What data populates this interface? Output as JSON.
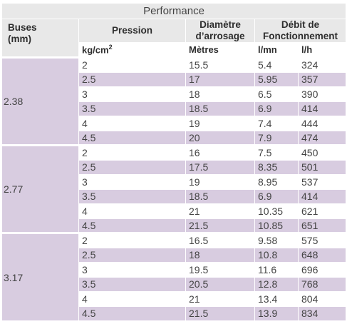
{
  "table": {
    "title": "Performance",
    "headers": {
      "buses": [
        "Buses",
        "(mm)"
      ],
      "pression": "Pression",
      "diametre": [
        "Diamètre",
        "d’arrosage"
      ],
      "debit": [
        "Débit de",
        "Fonctionnement"
      ]
    },
    "units": {
      "pression": "kg/cm",
      "pression_exp": "2",
      "diametre": "Mètres",
      "lmn": "l/mn",
      "lh": "l/h"
    },
    "groups": [
      {
        "buse": "2.38",
        "rows": [
          {
            "pression": "2",
            "diametre": "15.5",
            "lmn": "5.4",
            "lh": "324"
          },
          {
            "pression": "2.5",
            "diametre": "17",
            "lmn": "5.95",
            "lh": "357"
          },
          {
            "pression": "3",
            "diametre": "18",
            "lmn": "6.5",
            "lh": "390"
          },
          {
            "pression": "3.5",
            "diametre": "18.5",
            "lmn": "6.9",
            "lh": "414"
          },
          {
            "pression": "4",
            "diametre": "19",
            "lmn": "7.4",
            "lh": "444"
          },
          {
            "pression": "4.5",
            "diametre": "20",
            "lmn": "7.9",
            "lh": "474"
          }
        ]
      },
      {
        "buse": "2.77",
        "rows": [
          {
            "pression": "2",
            "diametre": "16",
            "lmn": "7.5",
            "lh": "450"
          },
          {
            "pression": "2.5",
            "diametre": "17.5",
            "lmn": "8.35",
            "lh": "501"
          },
          {
            "pression": "3",
            "diametre": "19",
            "lmn": "8.95",
            "lh": "537"
          },
          {
            "pression": "3.5",
            "diametre": "18.5",
            "lmn": "6.9",
            "lh": "414"
          },
          {
            "pression": "4",
            "diametre": "21",
            "lmn": "10.35",
            "lh": "621"
          },
          {
            "pression": "4.5",
            "diametre": "21.5",
            "lmn": "10.85",
            "lh": "651"
          }
        ]
      },
      {
        "buse": "3.17",
        "rows": [
          {
            "pression": "2",
            "diametre": "16.5",
            "lmn": "9.58",
            "lh": "575"
          },
          {
            "pression": "2.5",
            "diametre": "18",
            "lmn": "10.8",
            "lh": "648"
          },
          {
            "pression": "3",
            "diametre": "19.5",
            "lmn": "11.6",
            "lh": "696"
          },
          {
            "pression": "3.5",
            "diametre": "20.5",
            "lmn": "12.8",
            "lh": "768"
          },
          {
            "pression": "4",
            "diametre": "21",
            "lmn": "13.4",
            "lh": "804"
          },
          {
            "pression": "4.5",
            "diametre": "21.5",
            "lmn": "13.9",
            "lh": "834"
          }
        ]
      }
    ],
    "colors": {
      "header_bg": "#e8e8e8",
      "shaded_row": "#d8cce0",
      "text": "#444444"
    }
  }
}
